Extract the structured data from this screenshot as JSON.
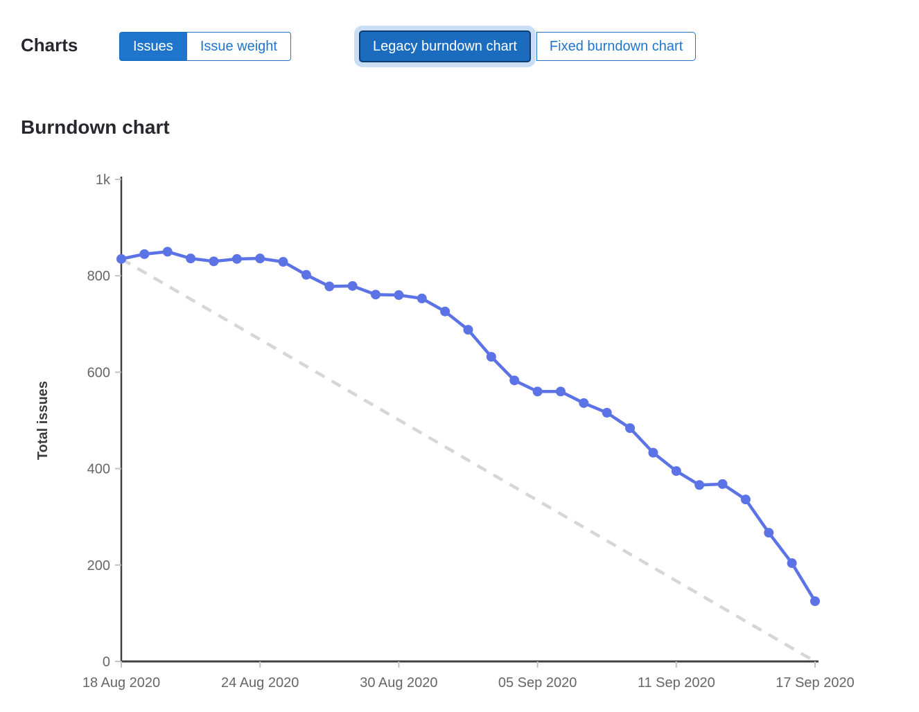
{
  "header": {
    "charts_label": "Charts",
    "issue_toggle": {
      "options": [
        {
          "label": "Issues",
          "selected": true
        },
        {
          "label": "Issue weight",
          "selected": false
        }
      ]
    },
    "chart_toggle": {
      "options": [
        {
          "label": "Legacy burndown chart",
          "selected": true,
          "focused": true
        },
        {
          "label": "Fixed burndown chart",
          "selected": false
        }
      ]
    }
  },
  "section_title": "Burndown chart",
  "colors": {
    "button_blue": "#1f75cb",
    "selected_button_bg": "#1b6cbf",
    "selected_button_border": "#0d3d70",
    "focus_ring": "#c9def5",
    "heading_text": "#28272d"
  },
  "chart_data": {
    "type": "line",
    "title": "Burndown chart",
    "xlabel": "",
    "ylabel": "Total issues",
    "ylim": [
      0,
      1000
    ],
    "x_day_span": 30,
    "grid": false,
    "legend": "none",
    "y_ticks": [
      {
        "value": 0,
        "label": "0"
      },
      {
        "value": 200,
        "label": "200"
      },
      {
        "value": 400,
        "label": "400"
      },
      {
        "value": 600,
        "label": "600"
      },
      {
        "value": 800,
        "label": "800"
      },
      {
        "value": 1000,
        "label": "1k"
      }
    ],
    "x_ticks": [
      {
        "day": 0,
        "label": "18 Aug 2020"
      },
      {
        "day": 6,
        "label": "24 Aug 2020"
      },
      {
        "day": 12,
        "label": "30 Aug 2020"
      },
      {
        "day": 18,
        "label": "05 Sep 2020"
      },
      {
        "day": 24,
        "label": "11 Sep 2020"
      },
      {
        "day": 30,
        "label": "17 Sep 2020"
      }
    ],
    "series": [
      {
        "values": [
          835,
          845,
          850,
          836,
          830,
          835,
          836,
          829,
          802,
          778,
          779,
          761,
          760,
          753,
          726,
          688,
          632,
          583,
          560,
          560,
          536,
          516,
          484,
          433,
          395,
          366,
          368,
          336,
          267,
          204,
          125
        ]
      }
    ],
    "guideline": {
      "from": [
        0,
        835
      ],
      "to": [
        30,
        0
      ],
      "style": "dashed"
    },
    "colors": {
      "line": "#5c73e6",
      "point": "#5c73e6",
      "guideline": "#d6d6d6",
      "axis": "#404040",
      "tick": "#c2c2c2",
      "tick_label": "#666666",
      "axis_title": "#3b3a3f"
    }
  }
}
